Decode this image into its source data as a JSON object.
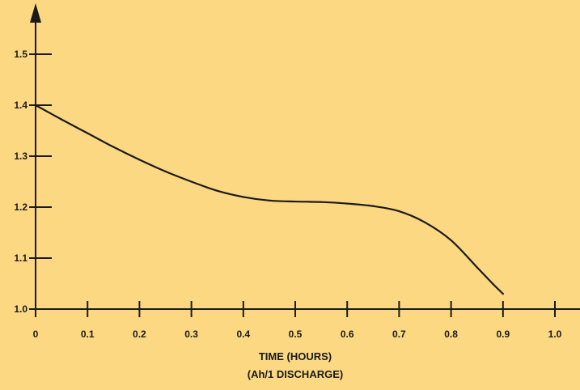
{
  "chart_data": {
    "type": "line",
    "title": "",
    "xlabel": "TIME (HOURS)",
    "xlabel_sub": "(Ah/1 DISCHARGE)",
    "ylabel": "",
    "xlim": [
      0,
      1.0
    ],
    "ylim": [
      1.0,
      1.5
    ],
    "x_ticks": [
      "0",
      "0.1",
      "0.2",
      "0.3",
      "0.4",
      "0.5",
      "0.6",
      "0.7",
      "0.8",
      "0.9",
      "1.0"
    ],
    "y_ticks": [
      "1.0",
      "1.1",
      "1.2",
      "1.3",
      "1.4",
      "1.5"
    ],
    "grid": false,
    "series": [
      {
        "x": [
          0,
          0.05,
          0.1,
          0.15,
          0.2,
          0.25,
          0.3,
          0.35,
          0.4,
          0.45,
          0.5,
          0.55,
          0.6,
          0.65,
          0.7,
          0.75,
          0.8,
          0.85,
          0.88,
          0.9
        ],
        "y": [
          1.4,
          1.372,
          1.345,
          1.318,
          1.293,
          1.27,
          1.25,
          1.232,
          1.22,
          1.213,
          1.211,
          1.21,
          1.207,
          1.202,
          1.192,
          1.17,
          1.135,
          1.082,
          1.05,
          1.03
        ]
      }
    ],
    "colors": {
      "background": "#fcd882",
      "ink": "#1a1a1a"
    }
  }
}
